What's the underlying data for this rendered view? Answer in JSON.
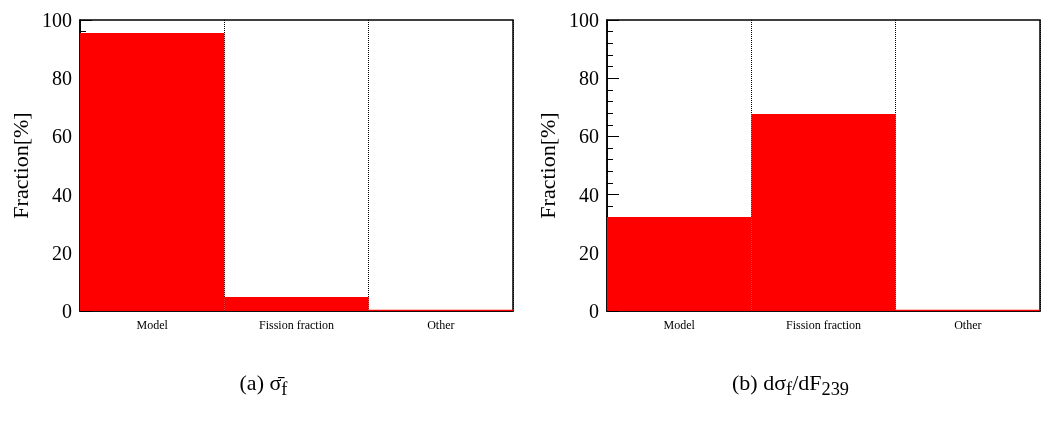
{
  "chart_data": [
    {
      "type": "bar",
      "ylabel": "Fraction[%]",
      "categories": [
        "Model",
        "Fission fraction",
        "Other"
      ],
      "values": [
        95.5,
        4.8,
        0.4
      ],
      "color": "#ff0000",
      "ylim": [
        0,
        100
      ],
      "yticks": [
        0,
        20,
        40,
        60,
        80,
        100
      ],
      "grid": "x",
      "annotations": [
        "(a) σ̄$_{f}$"
      ]
    },
    {
      "type": "bar",
      "ylabel": "Fraction[%]",
      "categories": [
        "Model",
        "Fission fraction",
        "Other"
      ],
      "values": [
        32.3,
        67.7,
        0.4
      ],
      "color": "#ff0000",
      "ylim": [
        0,
        100
      ],
      "yticks": [
        0,
        20,
        40,
        60,
        80,
        100
      ],
      "grid": "x",
      "annotations": [
        "(b) dσ$_{f}$/dF$_{239}$"
      ]
    }
  ]
}
